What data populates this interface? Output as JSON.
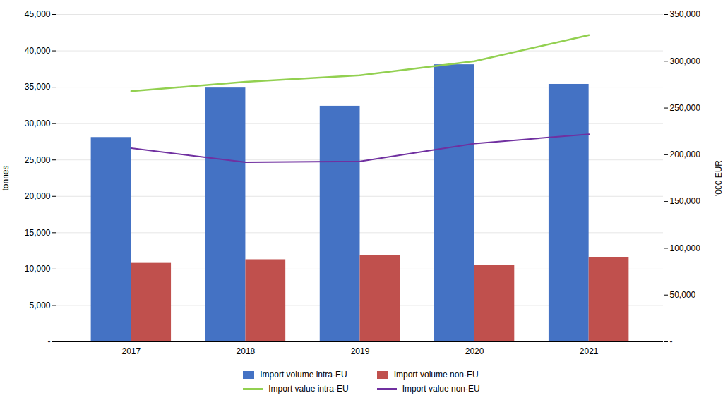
{
  "chart_data": {
    "type": "bar",
    "categories": [
      "2017",
      "2018",
      "2019",
      "2020",
      "2021"
    ],
    "series": [
      {
        "name": "Import volume intra-EU",
        "type": "bar",
        "color": "#4472C4",
        "values": [
          28100,
          34900,
          32400,
          38100,
          35400
        ]
      },
      {
        "name": "Import volume non-EU",
        "type": "bar",
        "color": "#C0504D",
        "values": [
          10800,
          11300,
          11900,
          10500,
          11600
        ]
      },
      {
        "name": "Import value intra-EU",
        "type": "line",
        "axis": "y2",
        "color": "#92D050",
        "values": [
          268000,
          278000,
          285000,
          300000,
          328000
        ]
      },
      {
        "name": "Import value non-EU",
        "type": "line",
        "axis": "y2",
        "color": "#7030A0",
        "values": [
          207000,
          192000,
          193000,
          212000,
          222000
        ]
      }
    ],
    "ylabel": "tonnes",
    "y2label": "'000 EUR",
    "ylim": [
      0,
      45000
    ],
    "yticks": [
      {
        "value": 0,
        "label": "-"
      },
      {
        "value": 5000,
        "label": "5,000"
      },
      {
        "value": 10000,
        "label": "10,000"
      },
      {
        "value": 15000,
        "label": "15,000"
      },
      {
        "value": 20000,
        "label": "20,000"
      },
      {
        "value": 25000,
        "label": "25,000"
      },
      {
        "value": 30000,
        "label": "30,000"
      },
      {
        "value": 35000,
        "label": "35,000"
      },
      {
        "value": 40000,
        "label": "40,000"
      },
      {
        "value": 45000,
        "label": "45,000"
      }
    ],
    "y2lim": [
      0,
      350000
    ],
    "y2ticks": [
      {
        "value": 0,
        "label": "-"
      },
      {
        "value": 50000,
        "label": "50,000"
      },
      {
        "value": 100000,
        "label": "100,000"
      },
      {
        "value": 150000,
        "label": "150,000"
      },
      {
        "value": 200000,
        "label": "200,000"
      },
      {
        "value": 250000,
        "label": "250,000"
      },
      {
        "value": 300000,
        "label": "300,000"
      },
      {
        "value": 350000,
        "label": "350,000"
      }
    ],
    "grid": true,
    "legend": "bottom"
  }
}
